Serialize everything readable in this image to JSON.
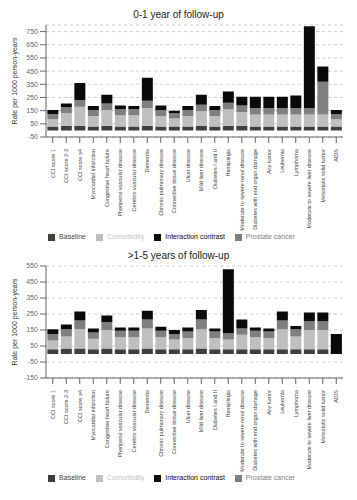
{
  "chart_data": [
    {
      "type": "bar",
      "stacked": true,
      "grid": true,
      "legend": "bottom",
      "title": "0-1 year of follow-up",
      "ylabel": "Rate per 1000 person-years",
      "categories": [
        "CCI score 1",
        "CCI score 2-3",
        "CCI score ≥4",
        "Myocardial infarction",
        "Congestive heart failure",
        "Pheriperal vascular disease",
        "Cerebro vascular disease",
        "Dementia",
        "Chronic pulmonary disease",
        "Connective tissue disease",
        "Ulcer disease",
        "Mild liver disease",
        "Diabetes I and II",
        "Hemiplegia",
        "Moderate to severe renal disease",
        "Diabetes with end organ damage",
        "Any tumor",
        "Leukemia",
        "Lymphoma",
        "Moderate to severe liver disease",
        "Metastatic solid tumor",
        "AIDS"
      ],
      "series": [
        {
          "name": "Baseline",
          "color": "#3f3f3f",
          "values": [
            30,
            35,
            35,
            30,
            35,
            30,
            30,
            35,
            30,
            30,
            30,
            35,
            30,
            35,
            35,
            30,
            30,
            30,
            30,
            30,
            30,
            30
          ]
        },
        {
          "name": "Comorbidity",
          "color": "#bfbfbf",
          "values": [
            55,
            95,
            145,
            80,
            120,
            85,
            85,
            135,
            80,
            60,
            80,
            110,
            80,
            125,
            105,
            90,
            90,
            90,
            90,
            90,
            90,
            55
          ]
        },
        {
          "name": "Prostate cancer",
          "color": "#7f7f7f",
          "values": [
            40,
            45,
            50,
            45,
            50,
            45,
            45,
            55,
            45,
            40,
            45,
            50,
            45,
            50,
            50,
            50,
            50,
            50,
            50,
            50,
            250,
            40
          ]
        },
        {
          "name": "Interaction contrast",
          "color": "#0a0a0a",
          "values": [
            30,
            30,
            130,
            30,
            65,
            30,
            25,
            175,
            35,
            20,
            30,
            75,
            30,
            85,
            65,
            85,
            85,
            85,
            95,
            620,
            115,
            30
          ]
        }
      ],
      "ylim": [
        -50,
        800
      ],
      "yticks": [
        -50,
        50,
        150,
        250,
        350,
        450,
        550,
        650,
        750
      ]
    },
    {
      "type": "bar",
      "stacked": true,
      "grid": true,
      "legend": "bottom",
      "title": ">1-5 years of follow-up",
      "ylabel": "Rate per 1000 person-years",
      "categories": [
        "CCI score 1",
        "CCI score 2-3",
        "CCI score ≥4",
        "Myocardial infarction",
        "Congestive heart failure",
        "Pheriperal vascular disease",
        "Cerebro vascular disease",
        "Dementia",
        "Chronic pulmonary disease",
        "Connective tissue disease",
        "Ulcer disease",
        "Mild liver disease",
        "Diabetes I and II",
        "Hemiplegia",
        "Moderate to severe renal disease",
        "Diabetes with end organ damage",
        "Any tumor",
        "Leukemia",
        "Lymphoma",
        "Moderate to severe liver disease",
        "Metastatic solid tumor",
        "AIDS"
      ],
      "series": [
        {
          "name": "Baseline",
          "color": "#3f3f3f",
          "values": [
            30,
            35,
            35,
            30,
            35,
            30,
            30,
            35,
            30,
            30,
            30,
            35,
            30,
            30,
            30,
            30,
            30,
            30,
            30,
            30,
            30,
            30
          ]
        },
        {
          "name": "Comorbidity",
          "color": "#bfbfbf",
          "values": [
            55,
            75,
            120,
            65,
            115,
            75,
            75,
            125,
            75,
            60,
            70,
            120,
            70,
            60,
            90,
            75,
            70,
            125,
            80,
            120,
            120,
            55
          ]
        },
        {
          "name": "Prostate cancer",
          "color": "#7f7f7f",
          "values": [
            40,
            45,
            55,
            40,
            50,
            40,
            40,
            55,
            40,
            35,
            40,
            60,
            40,
            40,
            40,
            40,
            40,
            55,
            45,
            55,
            55,
            40
          ]
        },
        {
          "name": "Interaction contrast",
          "color": "#0a0a0a",
          "values": [
            30,
            30,
            55,
            25,
            40,
            20,
            20,
            55,
            25,
            25,
            25,
            60,
            20,
            400,
            55,
            20,
            20,
            55,
            20,
            55,
            55,
            -125
          ]
        }
      ],
      "ylim": [
        -150,
        550
      ],
      "yticks": [
        -150,
        -50,
        50,
        150,
        250,
        350,
        450,
        550
      ]
    }
  ]
}
